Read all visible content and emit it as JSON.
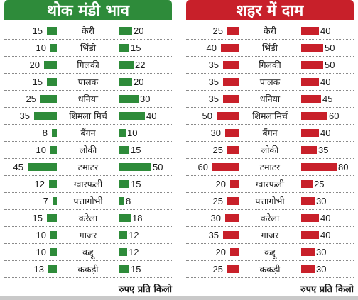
{
  "colors": {
    "wholesale": "#2e8b3a",
    "city": "#c8202a"
  },
  "chart_data": [
    {
      "type": "bar",
      "title": "थोक मंडी भाव",
      "footnote": "रुपए प्रति किलो",
      "color": "#2e8b3a",
      "series": [
        {
          "name": "",
          "values": [
            15,
            10,
            20,
            15,
            25,
            35,
            8,
            10,
            45,
            12,
            7,
            15,
            10,
            10,
            13
          ]
        },
        {
          "name": "",
          "values": [
            20,
            15,
            22,
            20,
            30,
            40,
            10,
            15,
            50,
            15,
            8,
            18,
            12,
            12,
            15
          ]
        }
      ],
      "categories": [
        "केरी",
        "भिंडी",
        "गिलकी",
        "पालक",
        "धनिया",
        "शिमला मिर्च",
        "बैंगन",
        "लोकी",
        "टमाटर",
        "ग्वारफली",
        "पत्तागोभी",
        "करेला",
        "गाजर",
        "कद्दू",
        "ककड़ी"
      ]
    },
    {
      "type": "bar",
      "title": "शहर में दाम",
      "footnote": "रुपए प्रति किलो",
      "color": "#c8202a",
      "series": [
        {
          "name": "",
          "values": [
            25,
            40,
            35,
            35,
            35,
            50,
            30,
            25,
            60,
            20,
            25,
            30,
            35,
            20,
            25
          ]
        },
        {
          "name": "",
          "values": [
            40,
            50,
            50,
            40,
            45,
            60,
            40,
            35,
            80,
            25,
            30,
            40,
            40,
            30,
            30
          ]
        }
      ],
      "categories": [
        "केरी",
        "भिंडी",
        "गिलकी",
        "पालक",
        "धनिया",
        "शिमलामिर्च",
        "बैंगन",
        "लोकी",
        "टमाटर",
        "ग्वारफली",
        "पत्तागोभी",
        "करेला",
        "गाजर",
        "कद्दू",
        "ककड़ी"
      ]
    }
  ]
}
